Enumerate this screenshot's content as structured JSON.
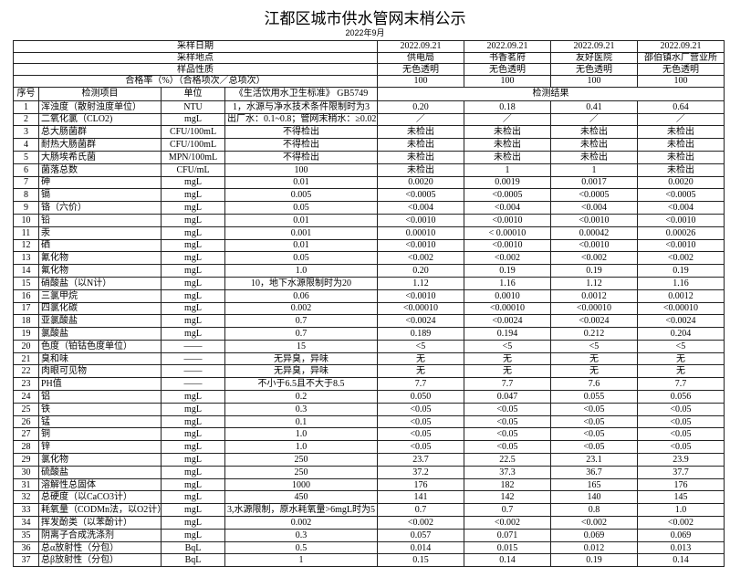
{
  "title": "江都区城市供水管网末梢公示",
  "subtitle": "2022年9月",
  "header_rows": [
    {
      "label": "采样日期",
      "values": [
        "2022.09.21",
        "2022.09.21",
        "2022.09.21",
        "2022.09.21"
      ]
    },
    {
      "label": "采样地点",
      "values": [
        "供电局",
        "书香茗府",
        "友好医院",
        "邵伯镇水厂营业所"
      ]
    },
    {
      "label": "样品性质",
      "values": [
        "无色透明",
        "无色透明",
        "无色透明",
        "无色透明"
      ]
    },
    {
      "label": "合格率（%）（合格项次／总项次）",
      "values": [
        "100",
        "100",
        "100",
        "100"
      ]
    }
  ],
  "columns": {
    "seq": "序号",
    "item": "检测项目",
    "unit": "单位",
    "standard": "《生活饮用水卫生标准》 GB5749",
    "results": "检测结果"
  },
  "rows": [
    {
      "seq": "1",
      "item": "浑浊度（散射浊度单位）",
      "unit": "NTU",
      "standard": "1，水源与净水技术条件限制时为3",
      "values": [
        "0.20",
        "0.18",
        "0.41",
        "0.64"
      ]
    },
    {
      "seq": "2",
      "item": "二氧化氯（CLO2)",
      "unit": "mgL",
      "standard": "出厂水：0.1~0.8；管网末稍水：≥0.02",
      "values": [
        "／",
        "／",
        "／",
        "／"
      ]
    },
    {
      "seq": "3",
      "item": "总大肠菌群",
      "unit": "CFU/100mL",
      "standard": "不得检出",
      "values": [
        "未检出",
        "未检出",
        "未检出",
        "未检出"
      ]
    },
    {
      "seq": "4",
      "item": "耐热大肠菌群",
      "unit": "CFU/100mL",
      "standard": "不得检出",
      "values": [
        "未检出",
        "未检出",
        "未检出",
        "未检出"
      ]
    },
    {
      "seq": "5",
      "item": "大肠埃希氏菌",
      "unit": "MPN/100mL",
      "standard": "不得检出",
      "values": [
        "未检出",
        "未检出",
        "未检出",
        "未检出"
      ]
    },
    {
      "seq": "6",
      "item": "菌落总数",
      "unit": "CFU/mL",
      "standard": "100",
      "values": [
        "未检出",
        "1",
        "1",
        "未检出"
      ]
    },
    {
      "seq": "7",
      "item": "砷",
      "unit": "mgL",
      "standard": "0.01",
      "values": [
        "0.0020",
        "0.0019",
        "0.0017",
        "0.0020"
      ]
    },
    {
      "seq": "8",
      "item": "镉",
      "unit": "mgL",
      "standard": "0.005",
      "values": [
        "<0.0005",
        "<0.0005",
        "<0.0005",
        "<0.0005"
      ]
    },
    {
      "seq": "9",
      "item": "铬（六价）",
      "unit": "mgL",
      "standard": "0.05",
      "values": [
        "<0.004",
        "<0.004",
        "<0.004",
        "<0.004"
      ]
    },
    {
      "seq": "10",
      "item": "铅",
      "unit": "mgL",
      "standard": "0.01",
      "values": [
        "<0.0010",
        "<0.0010",
        "<0.0010",
        "<0.0010"
      ]
    },
    {
      "seq": "11",
      "item": "汞",
      "unit": "mgL",
      "standard": "0.001",
      "values": [
        "0.00010",
        "< 0.00010",
        "0.00042",
        "0.00026"
      ]
    },
    {
      "seq": "12",
      "item": "硒",
      "unit": "mgL",
      "standard": "0.01",
      "values": [
        "<0.0010",
        "<0.0010",
        "<0.0010",
        "<0.0010"
      ]
    },
    {
      "seq": "13",
      "item": "氰化物",
      "unit": "mgL",
      "standard": "0.05",
      "values": [
        "<0.002",
        "<0.002",
        "<0.002",
        "<0.002"
      ]
    },
    {
      "seq": "14",
      "item": "氟化物",
      "unit": "mgL",
      "standard": "1.0",
      "values": [
        "0.20",
        "0.19",
        "0.19",
        "0.19"
      ]
    },
    {
      "seq": "15",
      "item": "硝酸盐（以N计）",
      "unit": "mgL",
      "standard": "10，地下水源限制时为20",
      "values": [
        "1.12",
        "1.16",
        "1.12",
        "1.16"
      ]
    },
    {
      "seq": "16",
      "item": "三氯甲烷",
      "unit": "mgL",
      "standard": "0.06",
      "values": [
        "<0.0010",
        "0.0010",
        "0.0012",
        "0.0012"
      ]
    },
    {
      "seq": "17",
      "item": "四氯化碳",
      "unit": "mgL",
      "standard": "0.002",
      "values": [
        "<0.00010",
        "<0.00010",
        "<0.00010",
        "<0.00010"
      ]
    },
    {
      "seq": "18",
      "item": "亚氯酸盐",
      "unit": "mgL",
      "standard": "0.7",
      "values": [
        "<0.0024",
        "<0.0024",
        "<0.0024",
        "<0.0024"
      ]
    },
    {
      "seq": "19",
      "item": "氯酸盐",
      "unit": "mgL",
      "standard": "0.7",
      "values": [
        "0.189",
        "0.194",
        "0.212",
        "0.204"
      ]
    },
    {
      "seq": "20",
      "item": "色度（铂钴色度单位）",
      "unit": "——",
      "standard": "15",
      "values": [
        "<5",
        "<5",
        "<5",
        "<5"
      ]
    },
    {
      "seq": "21",
      "item": "臭和味",
      "unit": "——",
      "standard": "无异臭，异味",
      "values": [
        "无",
        "无",
        "无",
        "无"
      ]
    },
    {
      "seq": "22",
      "item": "肉眼可见物",
      "unit": "——",
      "standard": "无异臭，异味",
      "values": [
        "无",
        "无",
        "无",
        "无"
      ]
    },
    {
      "seq": "23",
      "item": "PH值",
      "unit": "——",
      "standard": "不小于6.5且不大于8.5",
      "values": [
        "7.7",
        "7.7",
        "7.6",
        "7.7"
      ]
    },
    {
      "seq": "24",
      "item": "铝",
      "unit": "mgL",
      "standard": "0.2",
      "values": [
        "0.050",
        "0.047",
        "0.055",
        "0.056"
      ]
    },
    {
      "seq": "25",
      "item": "铁",
      "unit": "mgL",
      "standard": "0.3",
      "values": [
        "<0.05",
        "<0.05",
        "<0.05",
        "<0.05"
      ]
    },
    {
      "seq": "26",
      "item": "锰",
      "unit": "mgL",
      "standard": "0.1",
      "values": [
        "<0.05",
        "<0.05",
        "<0.05",
        "<0.05"
      ]
    },
    {
      "seq": "27",
      "item": "铜",
      "unit": "mgL",
      "standard": "1.0",
      "values": [
        "<0.05",
        "<0.05",
        "<0.05",
        "<0.05"
      ]
    },
    {
      "seq": "28",
      "item": "锌",
      "unit": "mgL",
      "standard": "1.0",
      "values": [
        "<0.05",
        "<0.05",
        "<0.05",
        "<0.05"
      ]
    },
    {
      "seq": "29",
      "item": "氯化物",
      "unit": "mgL",
      "standard": "250",
      "values": [
        "23.7",
        "22.5",
        "23.1",
        "23.9"
      ]
    },
    {
      "seq": "30",
      "item": "硫酸盐",
      "unit": "mgL",
      "standard": "250",
      "values": [
        "37.2",
        "37.3",
        "36.7",
        "37.7"
      ]
    },
    {
      "seq": "31",
      "item": "溶解性总固体",
      "unit": "mgL",
      "standard": "1000",
      "values": [
        "176",
        "182",
        "165",
        "176"
      ]
    },
    {
      "seq": "32",
      "item": "总硬度（以CaCO3计）",
      "unit": "mgL",
      "standard": "450",
      "values": [
        "141",
        "142",
        "140",
        "145"
      ]
    },
    {
      "seq": "33",
      "item": "耗氧量（CODMn法，以O2计）",
      "unit": "mgL",
      "standard": "3,水源限制，原水耗氧量>6mgL时为5",
      "values": [
        "0.7",
        "0.7",
        "0.8",
        "1.0"
      ]
    },
    {
      "seq": "34",
      "item": "挥发酚类（以苯酚计）",
      "unit": "mgL",
      "standard": "0.002",
      "values": [
        "<0.002",
        "<0.002",
        "<0.002",
        "<0.002"
      ]
    },
    {
      "seq": "35",
      "item": "阴离子合成洗涤剂",
      "unit": "mgL",
      "standard": "0.3",
      "values": [
        "0.057",
        "0.071",
        "0.069",
        "0.069"
      ]
    },
    {
      "seq": "36",
      "item": "总α放射性（分包）",
      "unit": "BqL",
      "standard": "0.5",
      "values": [
        "0.014",
        "0.015",
        "0.012",
        "0.013"
      ]
    },
    {
      "seq": "37",
      "item": "总β放射性（分包）",
      "unit": "BqL",
      "standard": "1",
      "values": [
        "0.15",
        "0.14",
        "0.19",
        "0.14"
      ]
    }
  ]
}
